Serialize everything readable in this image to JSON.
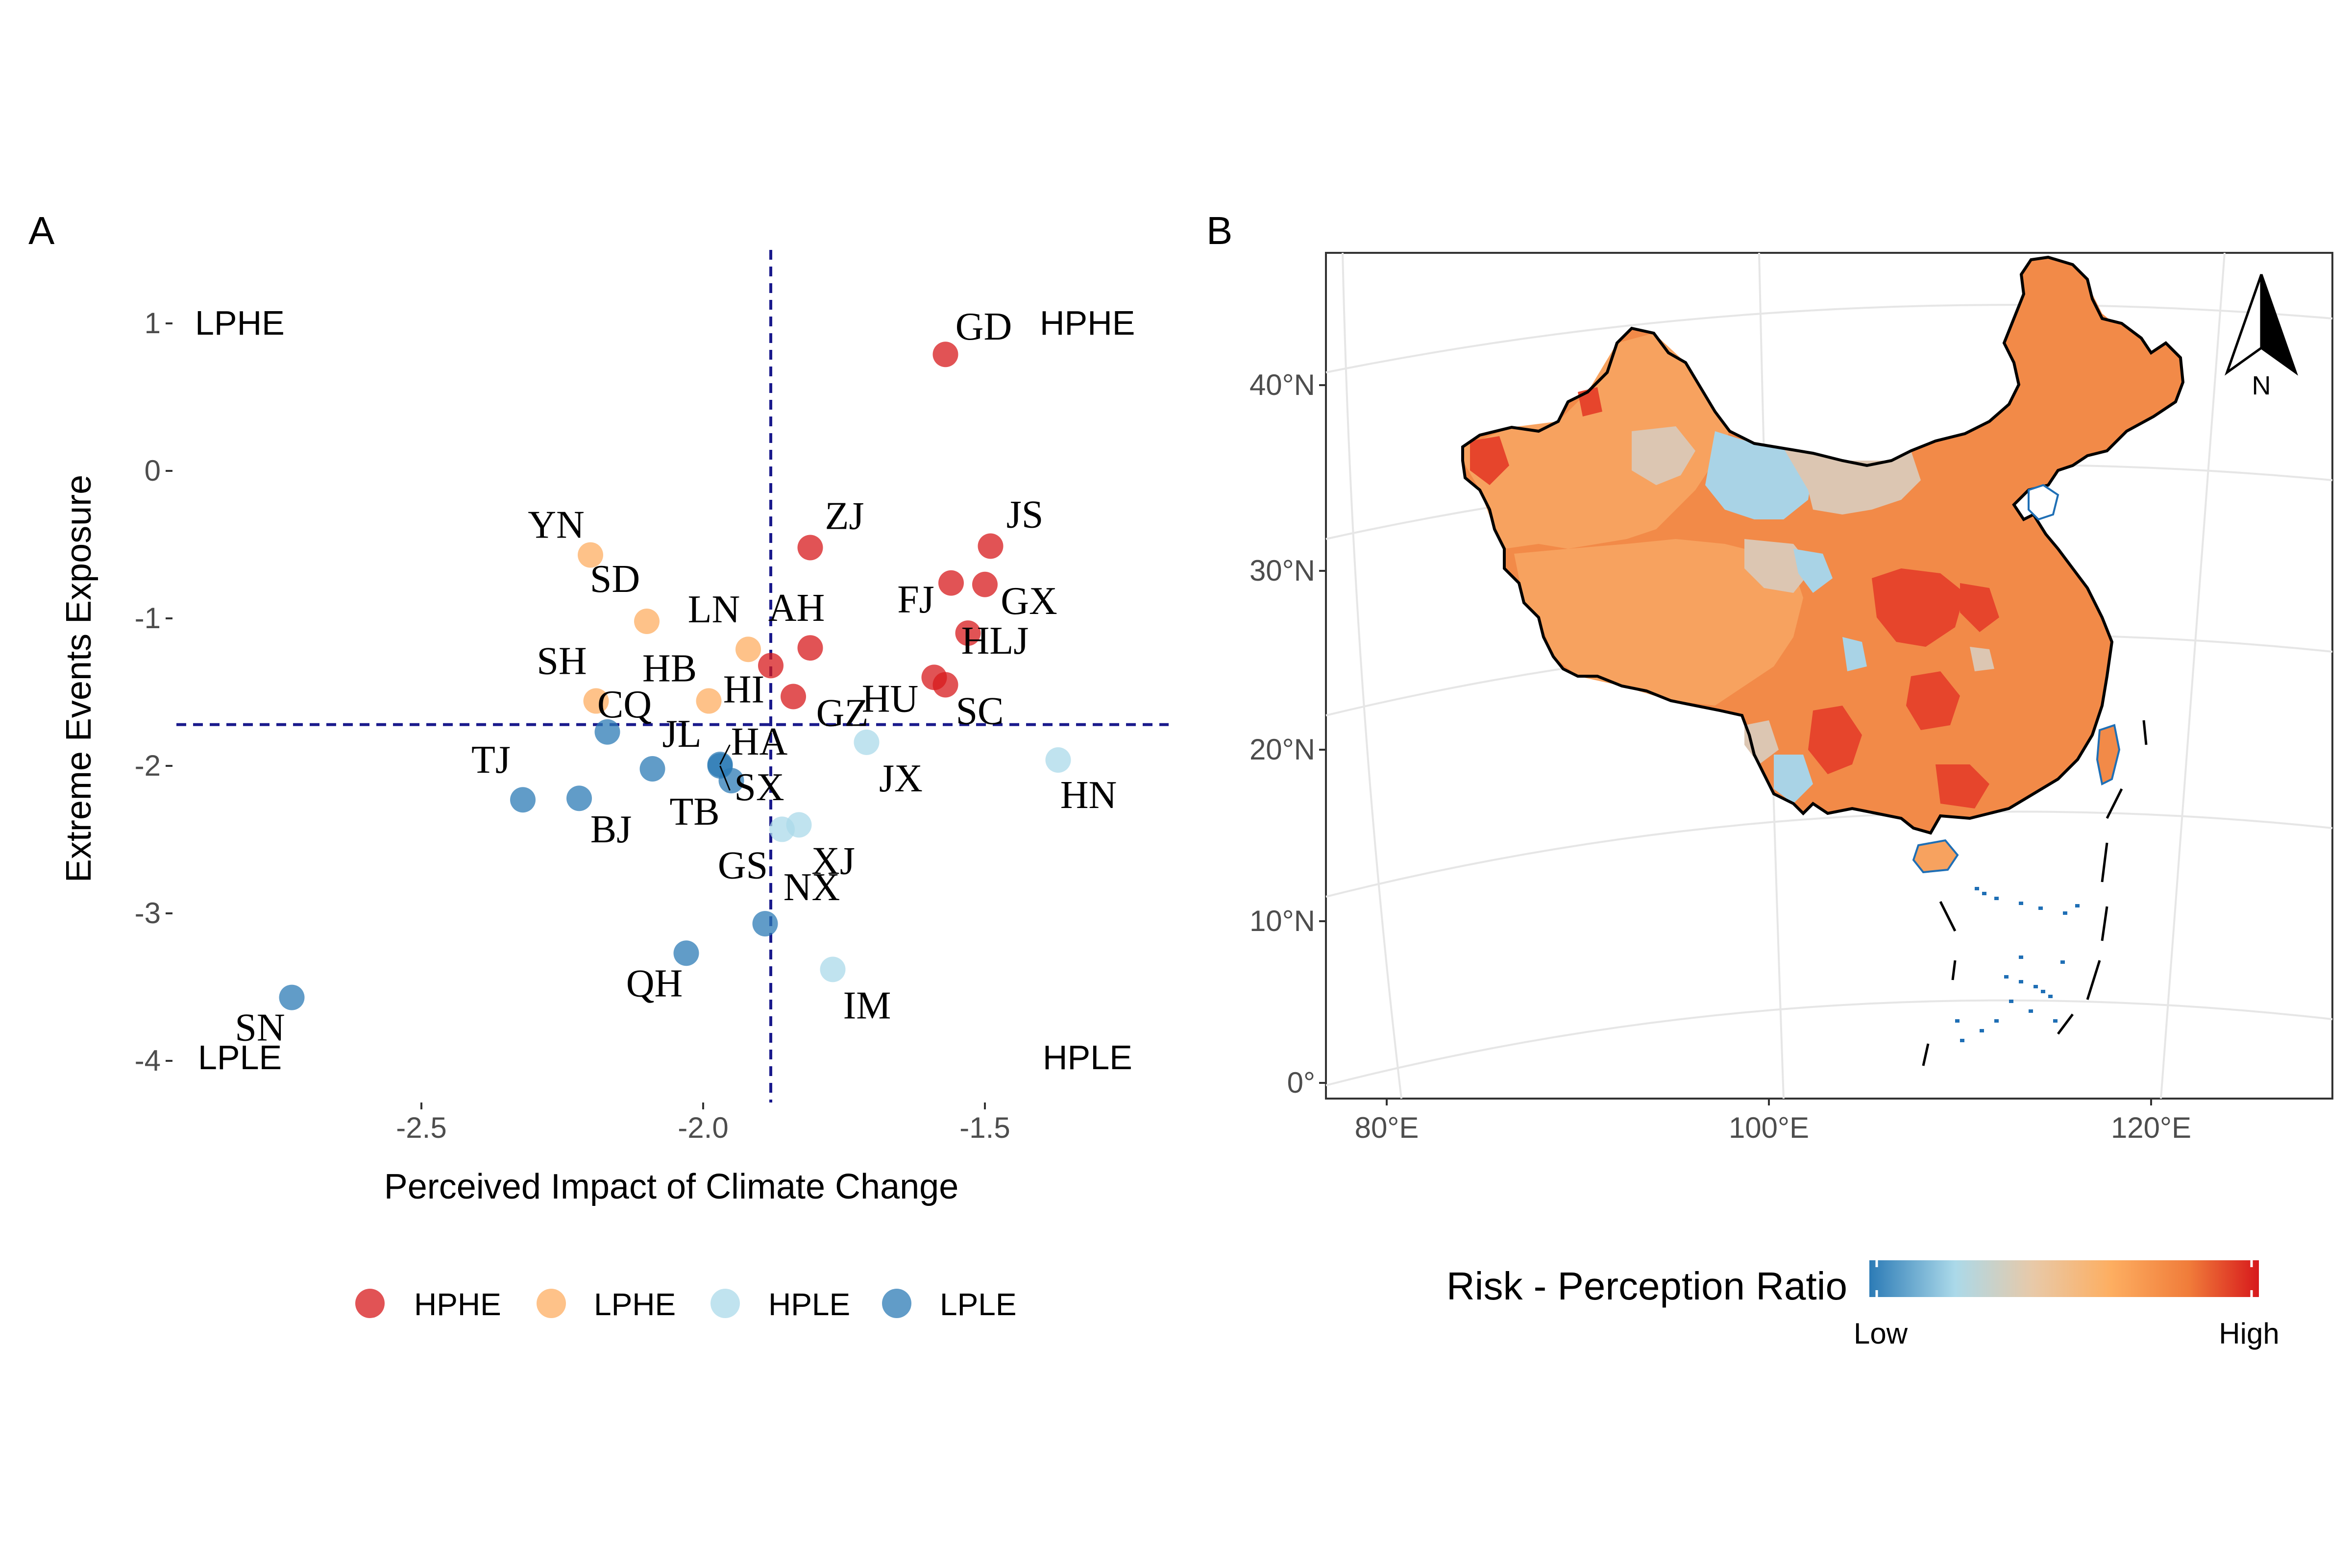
{
  "panels": {
    "a_label": "A",
    "b_label": "B"
  },
  "chart_data": [
    {
      "type": "scatter",
      "title": "",
      "xlabel": "Perceived Impact of Climate Change",
      "ylabel": "Extreme Events Exposure",
      "xlim": [
        -2.95,
        -1.15
      ],
      "ylim": [
        -4.2,
        1.5
      ],
      "xticks": [
        -2.5,
        -2.0,
        -1.5
      ],
      "xtick_labels": [
        "-2.5",
        "-2.0",
        "-1.5"
      ],
      "yticks": [
        1,
        0,
        -1,
        -2,
        -3,
        -4
      ],
      "ytick_labels": [
        "1",
        "0",
        "-1",
        "-2",
        "-3",
        "-4"
      ],
      "grid": false,
      "threshold_x": -1.88,
      "threshold_y": -1.72,
      "quadrant_labels": {
        "top_left": "LPHE",
        "top_right": "HPHE",
        "bottom_left": "LPLE",
        "bottom_right": "HPLE"
      },
      "legend_position": "bottom",
      "legend": [
        {
          "name": "HPHE",
          "color": "#d7191c"
        },
        {
          "name": "LPHE",
          "color": "#fdae61"
        },
        {
          "name": "HPLE",
          "color": "#abd9e9"
        },
        {
          "name": "LPLE",
          "color": "#2c7bb6"
        }
      ],
      "points": [
        {
          "label": "GD",
          "x": -1.57,
          "y": 0.79,
          "group": "HPHE"
        },
        {
          "label": "ZJ",
          "x": -1.81,
          "y": -0.52,
          "group": "HPHE"
        },
        {
          "label": "JS",
          "x": -1.49,
          "y": -0.51,
          "group": "HPHE"
        },
        {
          "label": "FJ",
          "x": -1.56,
          "y": -0.76,
          "group": "HPHE"
        },
        {
          "label": "GX",
          "x": -1.5,
          "y": -0.77,
          "group": "HPHE"
        },
        {
          "label": "AH",
          "x": -1.81,
          "y": -1.2,
          "group": "HPHE"
        },
        {
          "label": "HU",
          "x": -1.59,
          "y": -1.4,
          "group": "HPHE"
        },
        {
          "label": "HLJ",
          "x": -1.53,
          "y": -1.1,
          "group": "HPHE"
        },
        {
          "label": "SC",
          "x": -1.57,
          "y": -1.45,
          "group": "HPHE"
        },
        {
          "label": "HI",
          "x": -1.88,
          "y": -1.32,
          "group": "HPHE"
        },
        {
          "label": "GZ",
          "x": -1.84,
          "y": -1.53,
          "group": "HPHE"
        },
        {
          "label": "YN",
          "x": -2.2,
          "y": -0.57,
          "group": "LPHE"
        },
        {
          "label": "SD",
          "x": -2.1,
          "y": -1.02,
          "group": "LPHE"
        },
        {
          "label": "LN",
          "x": -1.92,
          "y": -1.21,
          "group": "LPHE"
        },
        {
          "label": "SH",
          "x": -2.19,
          "y": -1.56,
          "group": "LPHE"
        },
        {
          "label": "HB",
          "x": -1.99,
          "y": -1.56,
          "group": "LPHE"
        },
        {
          "label": "JX",
          "x": -1.71,
          "y": -1.84,
          "group": "HPLE"
        },
        {
          "label": "HN",
          "x": -1.37,
          "y": -1.96,
          "group": "HPLE"
        },
        {
          "label": "GS",
          "x": -1.86,
          "y": -2.43,
          "group": "HPLE"
        },
        {
          "label": "XJ",
          "x": -1.83,
          "y": -2.4,
          "group": "HPLE"
        },
        {
          "label": "IM",
          "x": -1.77,
          "y": -3.38,
          "group": "HPLE"
        },
        {
          "label": "CQ",
          "x": -2.17,
          "y": -1.77,
          "group": "LPLE"
        },
        {
          "label": "HA",
          "x": -1.97,
          "y": -1.99,
          "group": "LPLE"
        },
        {
          "label": "TJ",
          "x": -2.32,
          "y": -2.23,
          "group": "LPLE"
        },
        {
          "label": "JL",
          "x": -2.09,
          "y": -2.02,
          "group": "LPLE"
        },
        {
          "label": "BJ",
          "x": -2.22,
          "y": -2.22,
          "group": "LPLE"
        },
        {
          "label": "TB",
          "x": -1.95,
          "y": -2.1,
          "group": "LPLE"
        },
        {
          "label": "SX",
          "x": -1.97,
          "y": -2.0,
          "group": "LPLE"
        },
        {
          "label": "NX",
          "x": -1.89,
          "y": -3.07,
          "group": "LPLE"
        },
        {
          "label": "QH",
          "x": -2.03,
          "y": -3.27,
          "group": "LPLE"
        },
        {
          "label": "SN",
          "x": -2.73,
          "y": -3.57,
          "group": "LPLE"
        }
      ]
    },
    {
      "type": "heatmap",
      "title": "",
      "xticks": [
        80,
        100,
        120
      ],
      "xtick_labels": [
        "80°E",
        "100°E",
        "120°E"
      ],
      "yticks": [
        40,
        30,
        20,
        10,
        0
      ],
      "ytick_labels": [
        "40°N",
        "30°N",
        "20°N",
        "10°N",
        "0°"
      ],
      "grid": true,
      "north_arrow_label": "N",
      "colorbar": {
        "title": "Risk - Perception Ratio",
        "low_label": "Low",
        "high_label": "High",
        "stops": [
          "#2c7bb6",
          "#abd9e9",
          "#e8c9a8",
          "#fdae61",
          "#f07c3a",
          "#d7191c"
        ],
        "position": "bottom"
      },
      "fill_colors": {
        "base": "#f28a48",
        "light": "#f7a25f",
        "pale": "#dcc6b2",
        "blue": "#a9d3e6",
        "dark": "#e6452c",
        "ocean_islands": "#1f6fb5"
      }
    }
  ]
}
